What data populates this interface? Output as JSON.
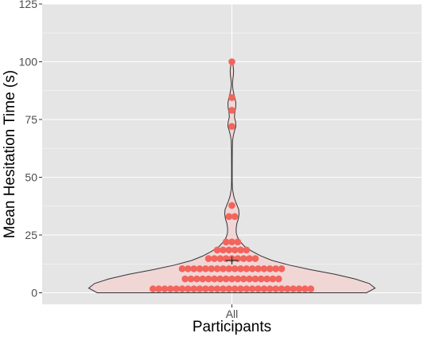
{
  "chart_data": {
    "type": "violin",
    "xlabel": "Participants",
    "ylabel": "Mean Hesitation Time (s)",
    "categories": [
      "All"
    ],
    "ylim": [
      -5,
      125
    ],
    "y_ticks": [
      0,
      25,
      50,
      75,
      100,
      125
    ],
    "y_tick_labels": [
      "0",
      "25",
      "50",
      "75",
      "100",
      "125"
    ],
    "grid": true,
    "mean_marker": 14,
    "violin_density": [
      [
        0,
        0.94
      ],
      [
        2,
        1.0
      ],
      [
        4,
        0.96
      ],
      [
        6,
        0.86
      ],
      [
        8,
        0.72
      ],
      [
        10,
        0.55
      ],
      [
        12,
        0.4
      ],
      [
        14,
        0.28
      ],
      [
        16,
        0.2
      ],
      [
        18,
        0.14
      ],
      [
        20,
        0.09
      ],
      [
        22,
        0.06
      ],
      [
        24,
        0.04
      ],
      [
        26,
        0.03
      ],
      [
        28,
        0.03
      ],
      [
        30,
        0.035
      ],
      [
        32,
        0.045
      ],
      [
        34,
        0.05
      ],
      [
        36,
        0.048
      ],
      [
        38,
        0.035
      ],
      [
        40,
        0.022
      ],
      [
        42,
        0.012
      ],
      [
        45,
        0.004
      ],
      [
        48,
        0.002
      ],
      [
        55,
        0.002
      ],
      [
        62,
        0.003
      ],
      [
        66,
        0.005
      ],
      [
        68,
        0.01
      ],
      [
        70,
        0.018
      ],
      [
        72,
        0.028
      ],
      [
        74,
        0.026
      ],
      [
        76,
        0.018
      ],
      [
        78,
        0.02
      ],
      [
        80,
        0.026
      ],
      [
        82,
        0.028
      ],
      [
        84,
        0.022
      ],
      [
        86,
        0.014
      ],
      [
        88,
        0.008
      ],
      [
        90,
        0.004
      ],
      [
        92,
        0.006
      ],
      [
        94,
        0.01
      ],
      [
        96,
        0.012
      ],
      [
        98,
        0.009
      ],
      [
        100,
        0.006
      ]
    ],
    "dot_bins": [
      {
        "y": 1.7,
        "count": 28
      },
      {
        "y": 6.0,
        "count": 17
      },
      {
        "y": 10.4,
        "count": 18
      },
      {
        "y": 14.8,
        "count": 9
      },
      {
        "y": 18.5,
        "count": 6
      },
      {
        "y": 22.0,
        "count": 3
      },
      {
        "y": 33.0,
        "count": 2
      },
      {
        "y": 37.8,
        "count": 1
      },
      {
        "y": 72.0,
        "count": 1
      },
      {
        "y": 79.0,
        "count": 1
      },
      {
        "y": 84.5,
        "count": 1
      },
      {
        "y": 100.0,
        "count": 1
      }
    ],
    "colors": {
      "panel": "#e5e5e5",
      "grid_major": "#ffffff",
      "violin_fill": "#f1d6d6",
      "violin_stroke": "#333333",
      "dot": "#f2645c",
      "mean_marker": "#333333"
    }
  }
}
